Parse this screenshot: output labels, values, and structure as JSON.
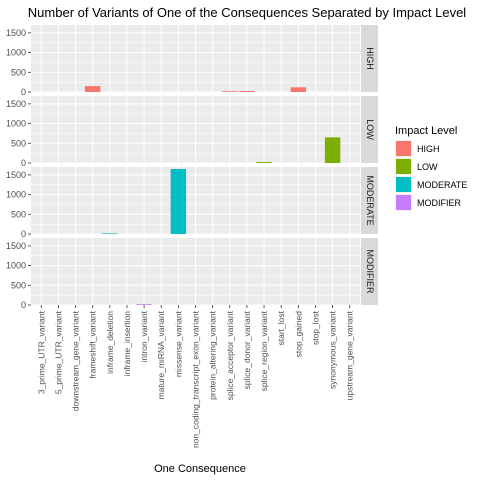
{
  "chart_data": {
    "type": "bar",
    "title": "Number of Variants of One of the Consequences Separated by Impact Level",
    "xlabel": "One Consequence",
    "ylabel": "",
    "ylim": [
      0,
      1700
    ],
    "yticks": [
      0,
      500,
      1000,
      1500
    ],
    "grid": true,
    "legend_position": "right",
    "categories": [
      "3_prime_UTR_variant",
      "5_prime_UTR_variant",
      "downstream_gene_variant",
      "frameshift_variant",
      "inframe_deletion",
      "inframe_insertion",
      "intron_variant",
      "mature_miRNA_variant",
      "missense_variant",
      "non_coding_transcript_exon_variant",
      "protein_altering_variant",
      "splice_acceptor_variant",
      "splice_donor_variant",
      "splice_region_variant",
      "start_lost",
      "stop_gained",
      "stop_lost",
      "synonymous_variant",
      "upstream_gene_variant"
    ],
    "legend_title": "Impact Level",
    "series": [
      {
        "name": "HIGH",
        "color": "#F8766D",
        "values": [
          0,
          0,
          0,
          150,
          0,
          0,
          0,
          0,
          0,
          0,
          0,
          20,
          25,
          0,
          0,
          120,
          0,
          0,
          0
        ]
      },
      {
        "name": "LOW",
        "color": "#7CAE00",
        "values": [
          0,
          0,
          0,
          0,
          0,
          0,
          0,
          0,
          0,
          0,
          0,
          0,
          0,
          25,
          0,
          0,
          0,
          650,
          0
        ]
      },
      {
        "name": "MODERATE",
        "color": "#00BFC4",
        "values": [
          0,
          0,
          0,
          0,
          15,
          0,
          0,
          0,
          1650,
          0,
          0,
          0,
          0,
          0,
          0,
          0,
          0,
          0,
          0
        ]
      },
      {
        "name": "MODIFIER",
        "color": "#C77CFF",
        "values": [
          0,
          0,
          0,
          0,
          0,
          0,
          20,
          0,
          0,
          0,
          0,
          0,
          0,
          0,
          0,
          0,
          0,
          0,
          0
        ]
      }
    ]
  }
}
